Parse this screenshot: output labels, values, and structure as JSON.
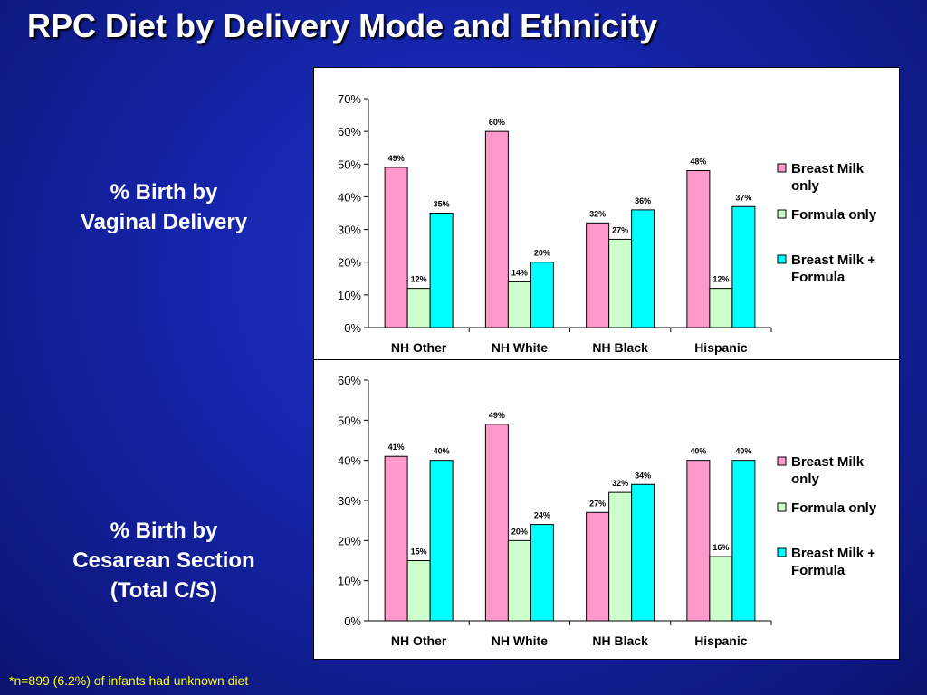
{
  "slide": {
    "title": "RPC Diet by Delivery Mode and Ethnicity",
    "vaginal_label": [
      "% Birth by",
      "Vaginal Delivery"
    ],
    "cesarean_label": [
      "% Birth by",
      "Cesarean Section",
      "(Total C/S)"
    ],
    "footnote": "*n=899 (6.2%) of infants had unknown diet"
  },
  "colors": {
    "breast_milk": "#ff99cc",
    "formula": "#ccffcc",
    "both": "#00ffff"
  },
  "chart_data": [
    {
      "type": "bar",
      "categories": [
        "NH Other",
        "NH White",
        "NH Black",
        "Hispanic"
      ],
      "series": [
        {
          "name": "Breast Milk only",
          "values": [
            49,
            60,
            32,
            48
          ],
          "labels": [
            "49%",
            "60%",
            "32%",
            "48%"
          ]
        },
        {
          "name": "Formula only",
          "values": [
            12,
            14,
            27,
            12
          ],
          "labels": [
            "12%",
            "14%",
            "27%",
            "12%"
          ]
        },
        {
          "name": "Breast Milk + Formula",
          "values": [
            35,
            20,
            36,
            37
          ],
          "labels": [
            "35%",
            "20%",
            "36%",
            "37%"
          ]
        }
      ],
      "legend": [
        [
          "Breast Milk",
          "only"
        ],
        [
          "Formula only"
        ],
        [
          "Breast Milk +",
          "Formula"
        ]
      ],
      "ylim": [
        0,
        70
      ],
      "yticks": [
        "0%",
        "10%",
        "20%",
        "30%",
        "40%",
        "50%",
        "60%",
        "70%"
      ],
      "legend_position": "right"
    },
    {
      "type": "bar",
      "categories": [
        "NH Other",
        "NH White",
        "NH Black",
        "Hispanic"
      ],
      "series": [
        {
          "name": "Breast Milk only",
          "values": [
            41,
            49,
            27,
            40
          ],
          "labels": [
            "41%",
            "49%",
            "27%",
            "40%"
          ]
        },
        {
          "name": "Formula only",
          "values": [
            15,
            20,
            32,
            16
          ],
          "labels": [
            "15%",
            "20%",
            "32%",
            "16%"
          ]
        },
        {
          "name": "Breast Milk + Formula",
          "values": [
            40,
            24,
            34,
            40
          ],
          "labels": [
            "40%",
            "24%",
            "34%",
            "40%"
          ]
        }
      ],
      "legend": [
        [
          "Breast Milk",
          "only"
        ],
        [
          "Formula only"
        ],
        [
          "Breast Milk +",
          "Formula"
        ]
      ],
      "ylim": [
        0,
        60
      ],
      "yticks": [
        "0%",
        "10%",
        "20%",
        "30%",
        "40%",
        "50%",
        "60%"
      ],
      "legend_position": "right"
    }
  ]
}
